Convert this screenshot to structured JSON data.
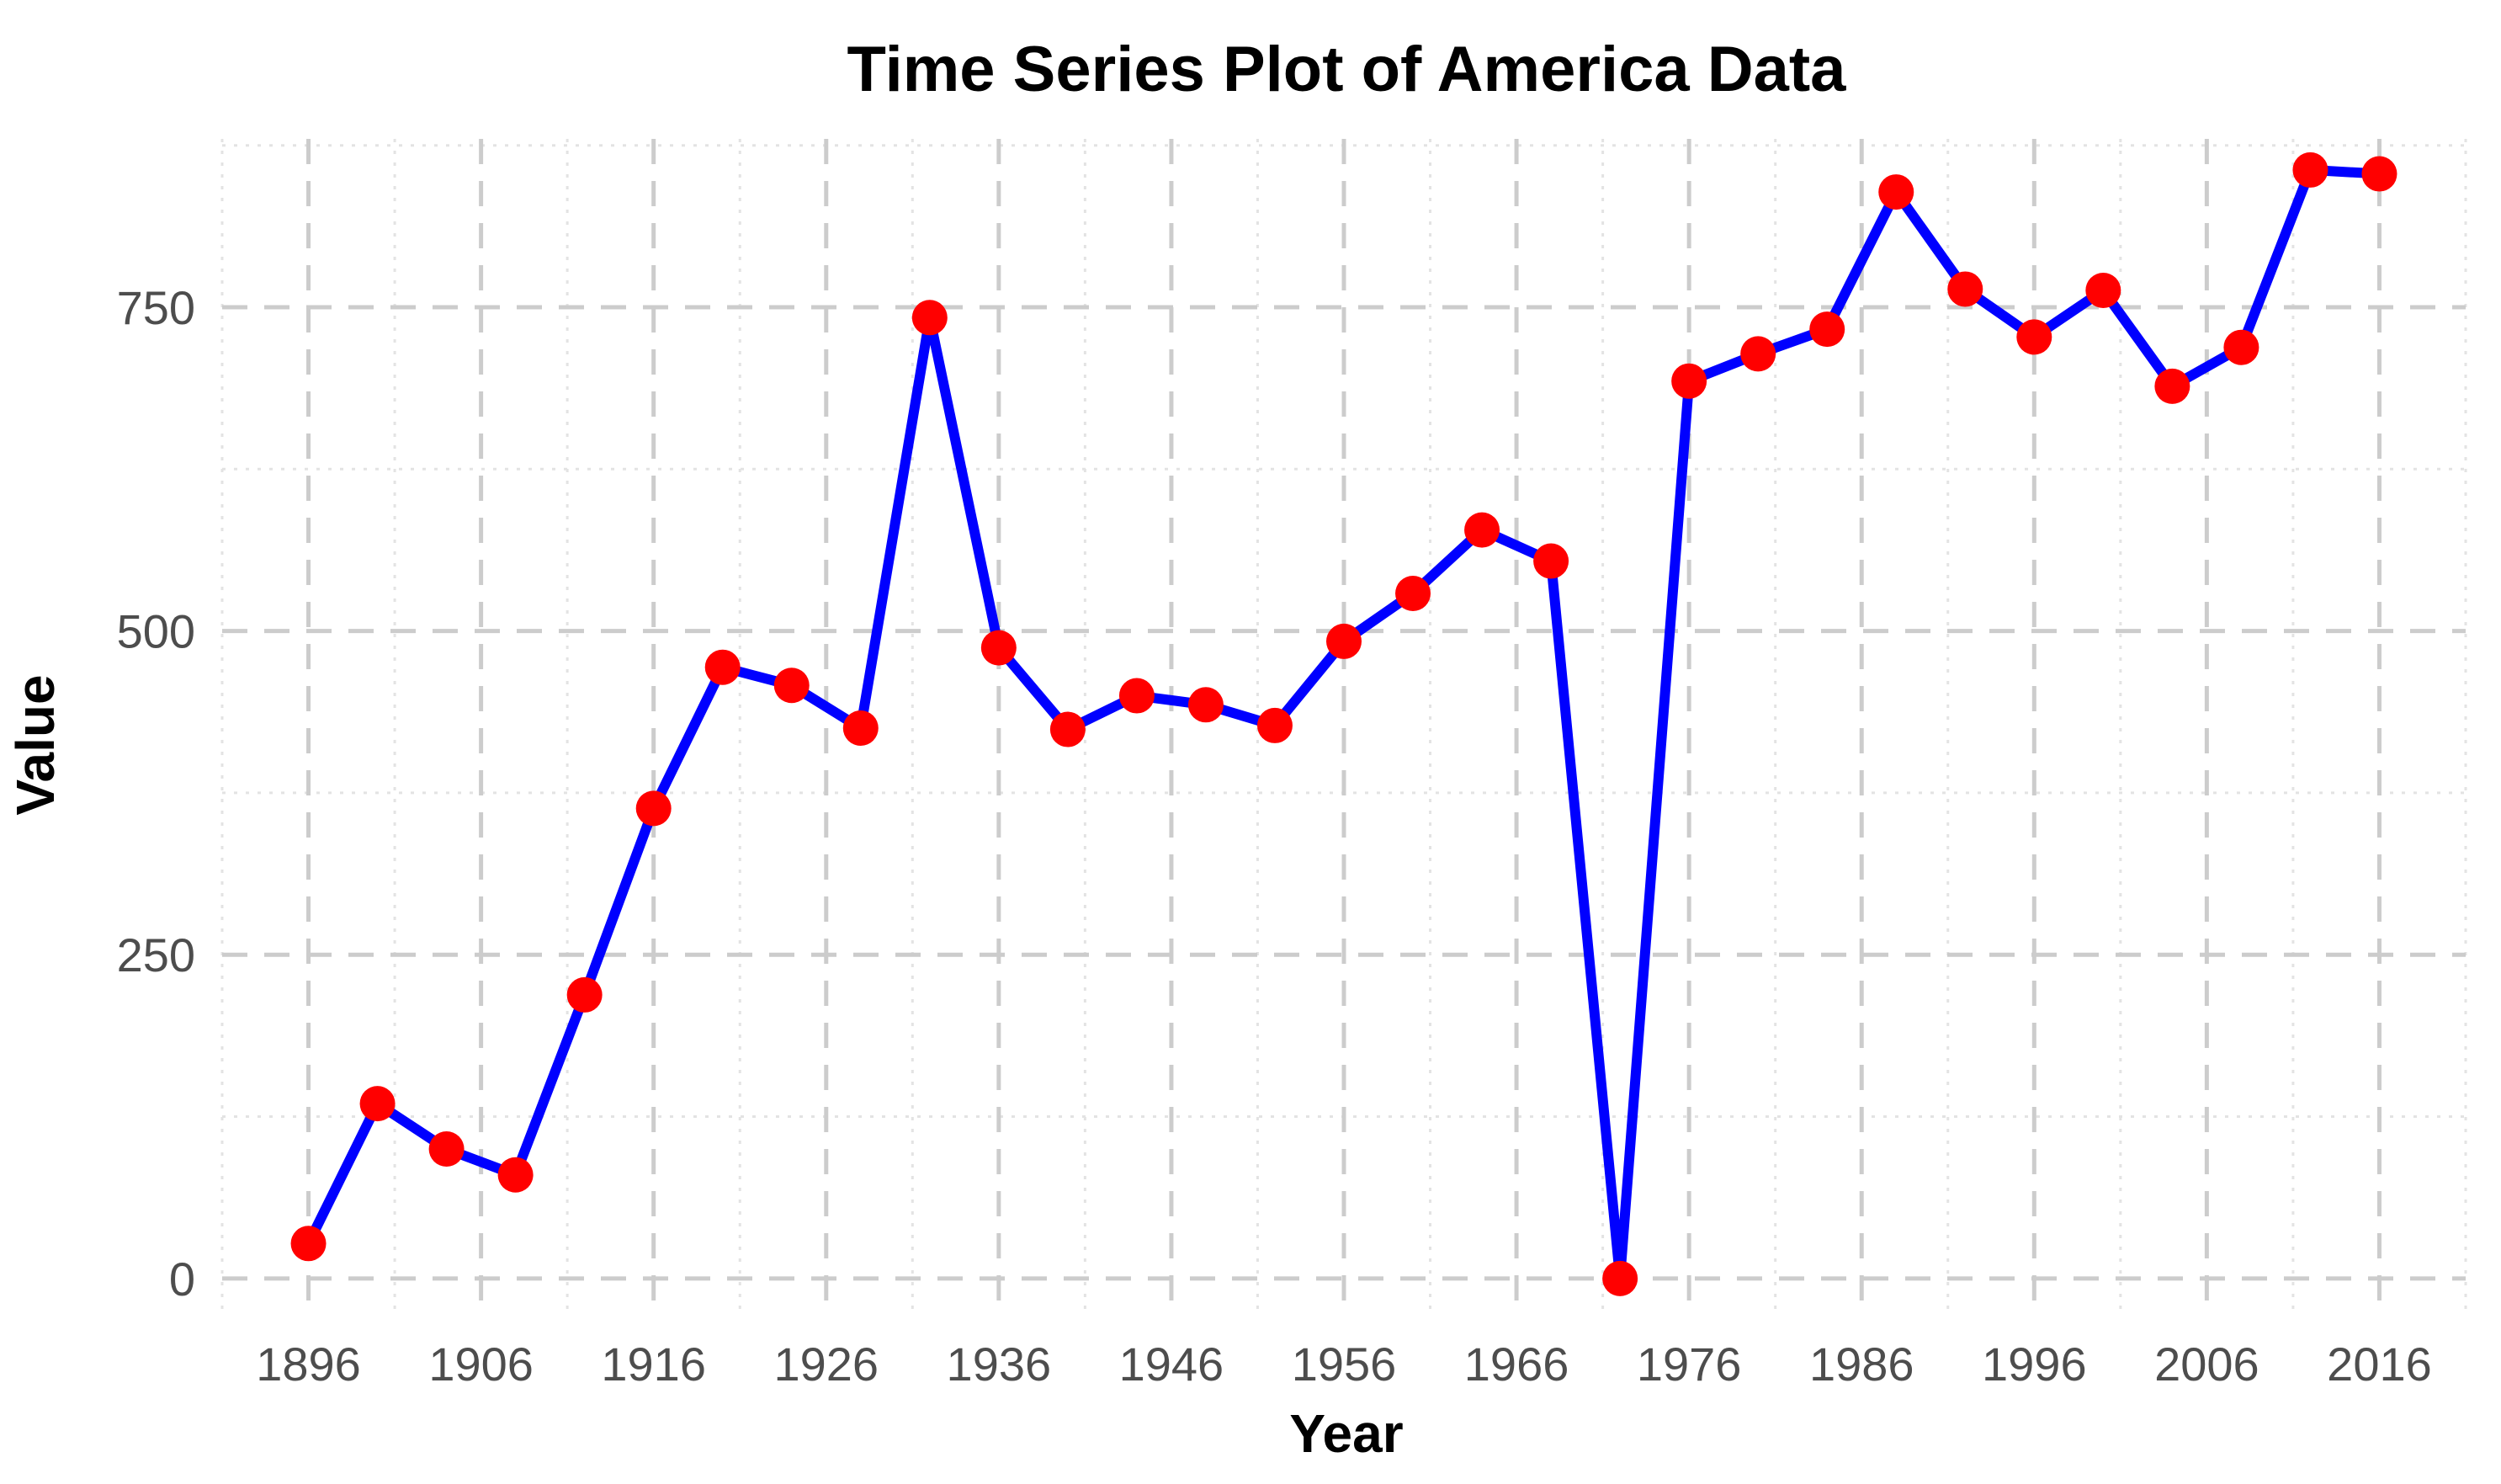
{
  "chart_data": {
    "type": "line",
    "title": "Time Series Plot of America Data",
    "xlabel": "Year",
    "ylabel": "Value",
    "xlim": [
      1891,
      2021
    ],
    "ylim": [
      -30,
      880
    ],
    "xticks": [
      1896,
      1906,
      1916,
      1926,
      1936,
      1946,
      1956,
      1966,
      1976,
      1986,
      1996,
      2006,
      2016
    ],
    "yticks": [
      0,
      250,
      500,
      750
    ],
    "grid": true,
    "colors": {
      "line": "#0000ff",
      "marker": "#ff0000"
    },
    "series": [
      {
        "x": [
          1896,
          1900,
          1904,
          1908,
          1912,
          1916,
          1920,
          1924,
          1928,
          1932,
          1936,
          1940,
          1944,
          1948,
          1952,
          1956,
          1960,
          1964,
          1968,
          1972,
          1976,
          1980,
          1984,
          1988,
          1992,
          1996,
          2000,
          2004,
          2008,
          2012,
          2016
        ],
        "values": [
          27,
          135,
          100,
          80,
          219,
          363,
          472,
          458,
          425,
          742,
          487,
          424,
          450,
          443,
          427,
          492,
          529,
          578,
          554,
          0,
          693,
          714,
          733,
          839,
          764,
          727,
          763,
          689,
          719,
          856,
          853
        ]
      }
    ]
  }
}
